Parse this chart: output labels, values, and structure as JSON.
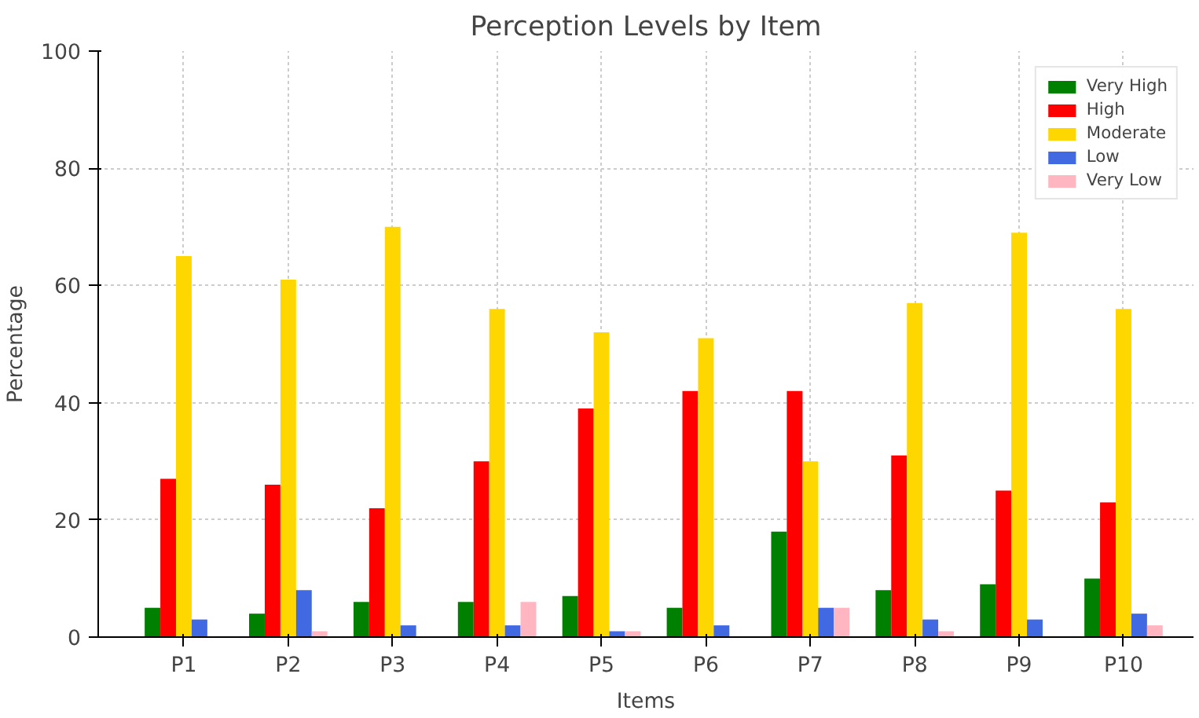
{
  "chart_data": {
    "type": "bar",
    "title": "Perception Levels by Item",
    "xlabel": "Items",
    "ylabel": "Percentage",
    "categories": [
      "P1",
      "P2",
      "P3",
      "P4",
      "P5",
      "P6",
      "P7",
      "P8",
      "P9",
      "P10"
    ],
    "series": [
      {
        "name": "Very High",
        "color": "#008000",
        "values": [
          5,
          4,
          6,
          6,
          7,
          5,
          18,
          8,
          9,
          10
        ]
      },
      {
        "name": "High",
        "color": "#ff0000",
        "values": [
          27,
          26,
          22,
          30,
          39,
          42,
          42,
          31,
          25,
          23
        ]
      },
      {
        "name": "Moderate",
        "color": "#ffd700",
        "values": [
          65,
          61,
          70,
          56,
          52,
          51,
          30,
          57,
          69,
          56
        ]
      },
      {
        "name": "Low",
        "color": "#4169e1",
        "values": [
          3,
          8,
          2,
          2,
          1,
          2,
          5,
          3,
          3,
          4
        ]
      },
      {
        "name": "Very Low",
        "color": "#ffb6c1",
        "values": [
          0,
          1,
          0,
          6,
          1,
          0,
          5,
          1,
          0,
          2
        ]
      }
    ],
    "ylim": [
      0,
      100
    ],
    "yticks": [
      0,
      20,
      40,
      60,
      80,
      100
    ],
    "grid": true,
    "legend": "top right"
  }
}
